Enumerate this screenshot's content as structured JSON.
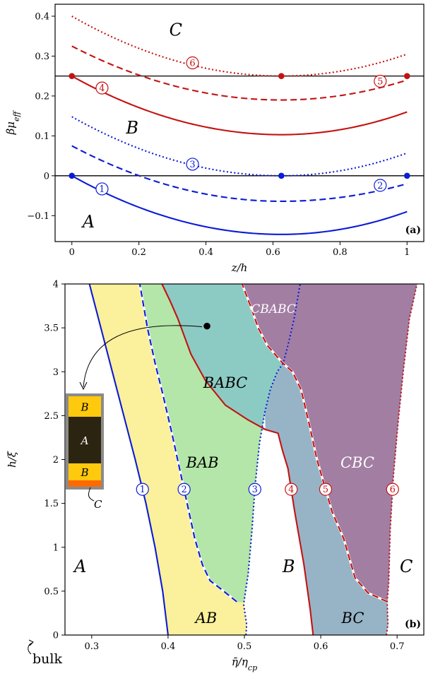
{
  "chart_data": [
    {
      "type": "line",
      "panel_label": "(a)",
      "xlabel": "z/h",
      "ylabel": "βμ_eff",
      "xlim": [
        -0.05,
        1.05
      ],
      "ylim": [
        -0.165,
        0.43
      ],
      "x_ticks": [
        {
          "v": 0,
          "label": "0"
        },
        {
          "v": 0.2,
          "label": "0.2"
        },
        {
          "v": 0.4,
          "label": "0.4"
        },
        {
          "v": 0.6,
          "label": "0.6"
        },
        {
          "v": 0.8,
          "label": "0.8"
        },
        {
          "v": 1,
          "label": "1"
        }
      ],
      "y_ticks": [
        {
          "v": -0.1,
          "label": "−0.1"
        },
        {
          "v": 0,
          "label": "0"
        },
        {
          "v": 0.1,
          "label": "0.1"
        },
        {
          "v": 0.2,
          "label": "0.2"
        },
        {
          "v": 0.3,
          "label": "0.3"
        },
        {
          "v": 0.4,
          "label": "0.4"
        }
      ],
      "hlines": [
        0,
        0.25
      ],
      "region_labels": [
        {
          "text": "A",
          "x": 0.05,
          "y": -0.115
        },
        {
          "text": "B",
          "x": 0.18,
          "y": 0.12
        },
        {
          "text": "C",
          "x": 0.31,
          "y": 0.365
        }
      ],
      "series": [
        {
          "id": "1",
          "color": "#0b1bd6",
          "dash": "solid",
          "vertex_x": 0.625,
          "x0": 0,
          "y0": 0,
          "vertex_y": -0.147,
          "x_end": 1,
          "y_end": -0.09,
          "marker": {
            "x": 0.09,
            "y": -0.033
          }
        },
        {
          "id": "2",
          "color": "#0b1bd6",
          "dash": "dashed",
          "vertex_x": 0.625,
          "x0": 0,
          "y0": 0.075,
          "vertex_y": -0.064,
          "x_end": 1,
          "y_end": -0.02,
          "marker": {
            "x": 0.92,
            "y": -0.024
          }
        },
        {
          "id": "3",
          "color": "#0b1bd6",
          "dash": "dotted",
          "vertex_x": 0.625,
          "x0": 0,
          "y0": 0.148,
          "vertex_y": 0,
          "x_end": 1,
          "y_end": 0.057,
          "marker": {
            "x": 0.36,
            "y": 0.029
          }
        },
        {
          "id": "4",
          "color": "#c41212",
          "dash": "solid",
          "vertex_x": 0.625,
          "x0": 0,
          "y0": 0.25,
          "vertex_y": 0.103,
          "x_end": 1,
          "y_end": 0.16,
          "marker": {
            "x": 0.09,
            "y": 0.22
          }
        },
        {
          "id": "5",
          "color": "#c41212",
          "dash": "dashed",
          "vertex_x": 0.625,
          "x0": 0,
          "y0": 0.325,
          "vertex_y": 0.19,
          "x_end": 1,
          "y_end": 0.24,
          "marker": {
            "x": 0.92,
            "y": 0.237
          }
        },
        {
          "id": "6",
          "color": "#c41212",
          "dash": "dotted",
          "vertex_x": 0.625,
          "x0": 0,
          "y0": 0.4,
          "vertex_y": 0.25,
          "x_end": 1,
          "y_end": 0.305,
          "marker": {
            "x": 0.36,
            "y": 0.283
          }
        }
      ],
      "points": [
        {
          "x": 0,
          "y": 0,
          "color": "#0b1bd6"
        },
        {
          "x": 0.625,
          "y": 0,
          "color": "#0b1bd6"
        },
        {
          "x": 1,
          "y": 0,
          "color": "#0b1bd6"
        },
        {
          "x": 0,
          "y": 0.25,
          "color": "#c41212"
        },
        {
          "x": 0.625,
          "y": 0.25,
          "color": "#c41212"
        },
        {
          "x": 1,
          "y": 0.25,
          "color": "#c41212"
        }
      ]
    },
    {
      "type": "area",
      "panel_label": "(b)",
      "xlabel": "η̄/η_cp",
      "ylabel": "h/ξ",
      "xlim": [
        0.265,
        0.735
      ],
      "ylim": [
        0,
        4
      ],
      "x_ticks": [
        {
          "v": 0.3,
          "label": "0.3"
        },
        {
          "v": 0.4,
          "label": "0.4"
        },
        {
          "v": 0.5,
          "label": "0.5"
        },
        {
          "v": 0.6,
          "label": "0.6"
        },
        {
          "v": 0.7,
          "label": "0.7"
        }
      ],
      "y_ticks": [
        {
          "v": 0,
          "label": "0"
        },
        {
          "v": 0.5,
          "label": "0.5"
        },
        {
          "v": 1,
          "label": "1"
        },
        {
          "v": 1.5,
          "label": "1.5"
        },
        {
          "v": 2,
          "label": "2"
        },
        {
          "v": 2.5,
          "label": "2.5"
        },
        {
          "v": 3,
          "label": "3"
        },
        {
          "v": 3.5,
          "label": "3.5"
        },
        {
          "v": 4,
          "label": "4"
        }
      ],
      "bulk_label": "bulk",
      "boundaries": [
        {
          "id": "1",
          "color": "#0b1bd6",
          "dash": "solid",
          "marker_y": 1.66,
          "points": [
            [
              0.4,
              0
            ],
            [
              0.393,
              0.5
            ],
            [
              0.383,
              1.0
            ],
            [
              0.371,
              1.5
            ],
            [
              0.357,
              2.0
            ],
            [
              0.342,
              2.5
            ],
            [
              0.327,
              3.0
            ],
            [
              0.312,
              3.5
            ],
            [
              0.297,
              4.0
            ]
          ]
        },
        {
          "id": "2",
          "color": "#0b1bd6",
          "dash": "dashed",
          "marker_y": 1.66,
          "points": [
            [
              0.49,
              0.38
            ],
            [
              0.47,
              0.52
            ],
            [
              0.455,
              0.62
            ],
            [
              0.445,
              0.8
            ],
            [
              0.435,
              1.1
            ],
            [
              0.425,
              1.5
            ],
            [
              0.415,
              1.9
            ],
            [
              0.405,
              2.3
            ],
            [
              0.393,
              2.75
            ],
            [
              0.383,
              3.1
            ],
            [
              0.373,
              3.5
            ],
            [
              0.363,
              4.0
            ]
          ]
        },
        {
          "id": "3",
          "color": "#0b1bd6",
          "dash": "dotted",
          "marker_y": 1.66,
          "points": [
            [
              0.502,
              0
            ],
            [
              0.503,
              0.12
            ],
            [
              0.499,
              0.35
            ],
            [
              0.505,
              0.7
            ],
            [
              0.51,
              1.2
            ],
            [
              0.514,
              1.7
            ],
            [
              0.52,
              2.2
            ],
            [
              0.527,
              2.55
            ],
            [
              0.534,
              2.8
            ],
            [
              0.543,
              3.0
            ],
            [
              0.551,
              3.1
            ],
            [
              0.557,
              3.3
            ],
            [
              0.565,
              3.6
            ],
            [
              0.573,
              4.0
            ]
          ]
        },
        {
          "id": "4",
          "color": "#c41212",
          "dash": "solid",
          "marker_y": 1.66,
          "points": [
            [
              0.59,
              0
            ],
            [
              0.586,
              0.3
            ],
            [
              0.578,
              0.8
            ],
            [
              0.566,
              1.4
            ],
            [
              0.557,
              1.9
            ],
            [
              0.55,
              2.1
            ],
            [
              0.544,
              2.3
            ],
            [
              0.528,
              2.34
            ],
            [
              0.505,
              2.45
            ],
            [
              0.475,
              2.62
            ],
            [
              0.449,
              2.9
            ],
            [
              0.43,
              3.2
            ],
            [
              0.413,
              3.6
            ],
            [
              0.403,
              3.8
            ],
            [
              0.392,
              4.0
            ]
          ]
        },
        {
          "id": "5",
          "color": "#c41212",
          "dash": "dashed",
          "marker_y": 1.66,
          "points": [
            [
              0.687,
              0.38
            ],
            [
              0.662,
              0.48
            ],
            [
              0.645,
              0.65
            ],
            [
              0.64,
              0.8
            ],
            [
              0.63,
              1.1
            ],
            [
              0.615,
              1.4
            ],
            [
              0.605,
              1.7
            ],
            [
              0.595,
              2.0
            ],
            [
              0.585,
              2.4
            ],
            [
              0.574,
              2.8
            ],
            [
              0.563,
              3.0
            ],
            [
              0.55,
              3.1
            ],
            [
              0.53,
              3.3
            ],
            [
              0.518,
              3.5
            ],
            [
              0.508,
              3.75
            ],
            [
              0.497,
              4.0
            ]
          ]
        },
        {
          "id": "6",
          "color": "#c41212",
          "dash": "dotted",
          "marker_y": 1.66,
          "points": [
            [
              0.686,
              0
            ],
            [
              0.688,
              0.12
            ],
            [
              0.687,
              0.38
            ],
            [
              0.689,
              0.6
            ],
            [
              0.691,
              1.2
            ],
            [
              0.695,
              1.8
            ],
            [
              0.701,
              2.4
            ],
            [
              0.708,
              3.0
            ],
            [
              0.716,
              3.6
            ],
            [
              0.726,
              4.0
            ]
          ]
        }
      ],
      "regions": [
        {
          "label": "A",
          "fill": "#ffffff",
          "lx": 0.285,
          "ly": 0.78,
          "label_color": "#000000",
          "size": "big"
        },
        {
          "label": "AB",
          "fill": "#fbf09b",
          "lx": 0.45,
          "ly": 0.2,
          "label_color": "#000000",
          "size": "mid"
        },
        {
          "label": "BAB",
          "fill": "#b3e6a8",
          "lx": 0.445,
          "ly": 1.97,
          "label_color": "#000000",
          "size": "mid"
        },
        {
          "label": "BABC",
          "fill": "#8ccbc4",
          "lx": 0.475,
          "ly": 2.88,
          "label_color": "#000000",
          "size": "mid"
        },
        {
          "label": "CBABC",
          "fill": "#a7a8cc",
          "lx": 0.538,
          "ly": 3.72,
          "label_color": "#ffffff",
          "size": "small"
        },
        {
          "label": "B",
          "fill": "#ffffff",
          "lx": 0.558,
          "ly": 0.78,
          "label_color": "#000000",
          "size": "big"
        },
        {
          "label": "BC",
          "fill": "#97b4c6",
          "lx": 0.642,
          "ly": 0.2,
          "label_color": "#000000",
          "size": "mid"
        },
        {
          "label": "CBC",
          "fill": "#a27ea3",
          "lx": 0.648,
          "ly": 1.97,
          "label_color": "#ffffff",
          "size": "mid"
        },
        {
          "label": "C",
          "fill": "#ffffff",
          "lx": 0.712,
          "ly": 0.78,
          "label_color": "#000000",
          "size": "big"
        }
      ],
      "state_point": {
        "x": 0.451,
        "y": 3.52
      },
      "inset_layers": [
        {
          "label": "B",
          "fill": "#ffc90e"
        },
        {
          "label": "A",
          "fill": "#2b2410"
        },
        {
          "label": "B",
          "fill": "#ffc90e"
        }
      ],
      "inset_wall_label": "C",
      "inset_wall_color": "#ff6a00"
    }
  ]
}
